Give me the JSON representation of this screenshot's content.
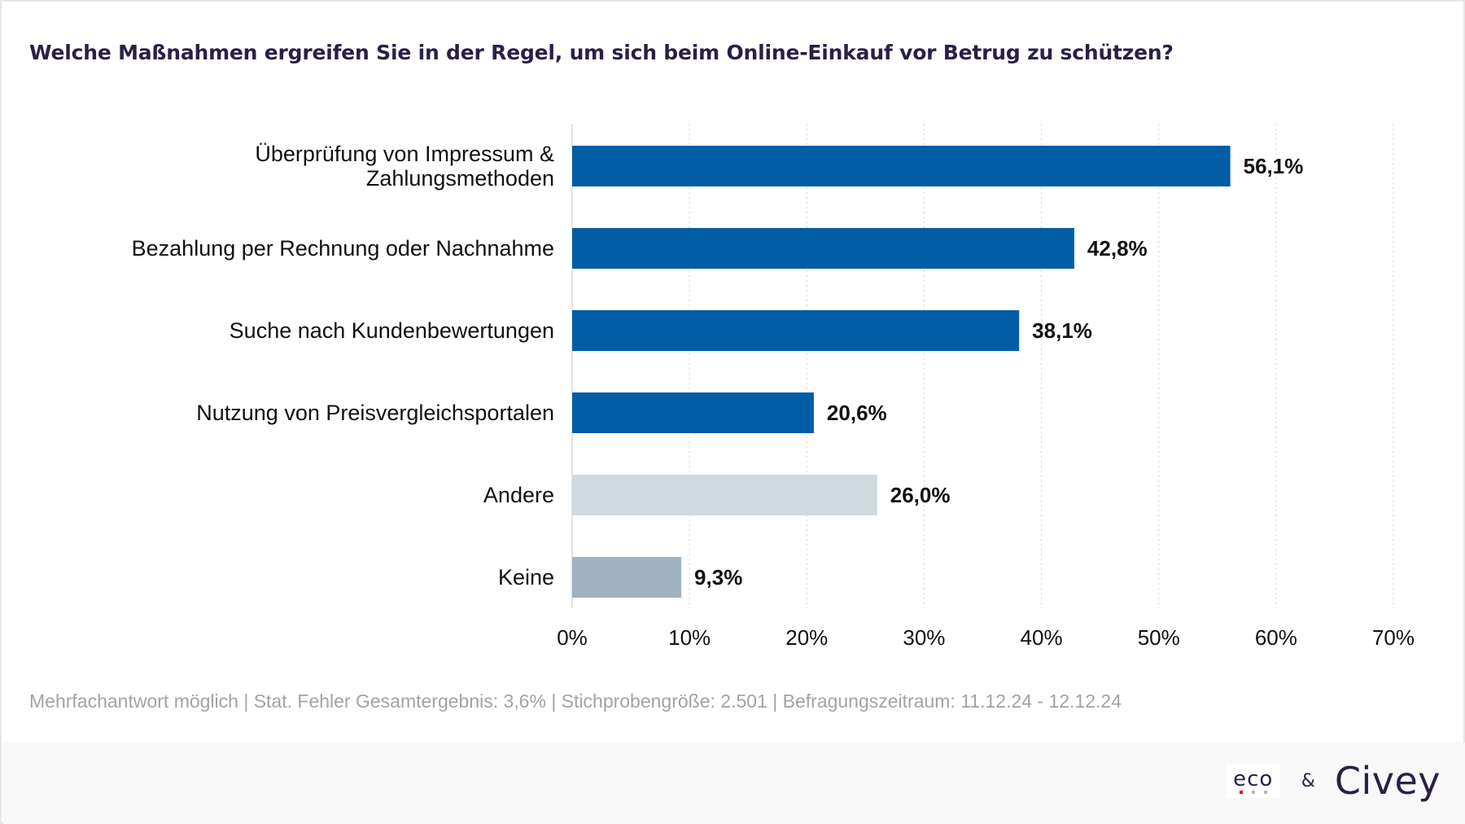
{
  "title": "Welche Maßnahmen ergreifen Sie in der Regel, um sich beim Online-Einkauf vor Betrug zu schützen?",
  "footnote": "Mehrfachantwort möglich | Stat. Fehler Gesamtergebnis: 3,6% | Stichprobengröße: 2.501 | Befragungszeitraum: 11.12.24 - 12.12.24",
  "footer": {
    "logo_eco": "eco",
    "ampersand": "&",
    "logo_civey": "Civey",
    "eco_dot_colors": [
      "#e2001a",
      "#b7b7b7",
      "#b7b7b7"
    ]
  },
  "chart_data": {
    "type": "bar",
    "orientation": "horizontal",
    "title": "Welche Maßnahmen ergreifen Sie in der Regel, um sich beim Online-Einkauf vor Betrug zu schützen?",
    "categories": [
      [
        "Überprüfung von Impressum &",
        "Zahlungsmethoden"
      ],
      [
        "Bezahlung per Rechnung oder Nachnahme"
      ],
      [
        "Suche nach Kundenbewertungen"
      ],
      [
        "Nutzung von Preisvergleichsportalen"
      ],
      [
        "Andere"
      ],
      [
        "Keine"
      ]
    ],
    "values": [
      56.1,
      42.8,
      38.1,
      20.6,
      26.0,
      9.3
    ],
    "value_labels": [
      "56,1%",
      "42,8%",
      "38,1%",
      "20,6%",
      "26,0%",
      "9,3%"
    ],
    "bar_colors": [
      "#005da6",
      "#005da6",
      "#005da6",
      "#005da6",
      "#d0d9e0",
      "#9fb2bf"
    ],
    "xlim": [
      0,
      70
    ],
    "xticks": [
      0,
      10,
      20,
      30,
      40,
      50,
      60,
      70
    ],
    "xtick_labels": [
      "0%",
      "10%",
      "20%",
      "30%",
      "40%",
      "50%",
      "60%",
      "70%"
    ],
    "grid": true,
    "legend": "none",
    "xlabel": "",
    "ylabel": ""
  }
}
